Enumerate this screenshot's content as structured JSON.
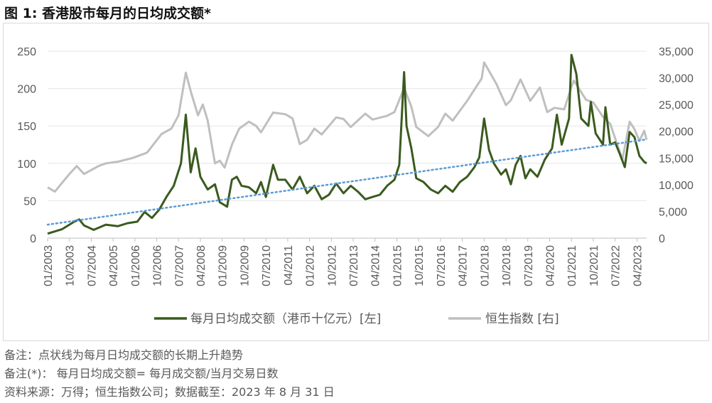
{
  "title": "图 1:  香港股市每月的日均成交额*",
  "notes": [
    "备注：点状线为每月日均成交额的长期上升趋势",
    "备注(*)：  每月日均成交额=  每月成交额/当月交易日数",
    "资料来源：万得；恒生指数公司；数据截至：2023 年 8 月 31 日"
  ],
  "chart_data": {
    "type": "line",
    "x_start": "01/2003",
    "x_end": "08/2023",
    "x_tick_labels": [
      "01/2003",
      "10/2003",
      "07/2004",
      "04/2005",
      "01/2006",
      "10/2006",
      "07/2007",
      "04/2008",
      "01/2009",
      "10/2009",
      "07/2010",
      "04/2011",
      "01/2012",
      "10/2012",
      "07/2013",
      "04/2014",
      "01/2015",
      "10/2015",
      "07/2016",
      "04/2017",
      "01/2018",
      "10/2018",
      "07/2019",
      "04/2020",
      "01/2021",
      "10/2021",
      "07/2022",
      "04/2023"
    ],
    "y_left": {
      "ylim": [
        0,
        250
      ],
      "ticks": [
        "0",
        "50",
        "100",
        "150",
        "200",
        "250"
      ]
    },
    "y_right": {
      "ylim": [
        0,
        35000
      ],
      "ticks": [
        "0",
        "5,000",
        "10,000",
        "15,000",
        "20,000",
        "25,000",
        "30,000",
        "35,000"
      ]
    },
    "series": [
      {
        "name": "每月日均成交额（港币十亿元）[左]",
        "axis": "left",
        "color": "#3a5a1e",
        "points": [
          [
            "01/2003",
            6
          ],
          [
            "07/2003",
            12
          ],
          [
            "12/2003",
            22
          ],
          [
            "02/2004",
            25
          ],
          [
            "04/2004",
            17
          ],
          [
            "08/2004",
            11
          ],
          [
            "01/2005",
            18
          ],
          [
            "06/2005",
            16
          ],
          [
            "10/2005",
            20
          ],
          [
            "02/2006",
            22
          ],
          [
            "05/2006",
            35
          ],
          [
            "08/2006",
            27
          ],
          [
            "11/2006",
            38
          ],
          [
            "02/2007",
            55
          ],
          [
            "05/2007",
            70
          ],
          [
            "08/2007",
            100
          ],
          [
            "10/2007",
            165
          ],
          [
            "12/2007",
            88
          ],
          [
            "02/2008",
            120
          ],
          [
            "04/2008",
            82
          ],
          [
            "07/2008",
            65
          ],
          [
            "10/2008",
            72
          ],
          [
            "12/2008",
            48
          ],
          [
            "03/2009",
            42
          ],
          [
            "05/2009",
            78
          ],
          [
            "07/2009",
            82
          ],
          [
            "09/2009",
            70
          ],
          [
            "12/2009",
            68
          ],
          [
            "03/2010",
            60
          ],
          [
            "05/2010",
            75
          ],
          [
            "07/2010",
            55
          ],
          [
            "10/2010",
            98
          ],
          [
            "12/2010",
            78
          ],
          [
            "03/2011",
            78
          ],
          [
            "06/2011",
            65
          ],
          [
            "09/2011",
            82
          ],
          [
            "12/2011",
            60
          ],
          [
            "03/2012",
            70
          ],
          [
            "06/2012",
            52
          ],
          [
            "09/2012",
            58
          ],
          [
            "12/2012",
            73
          ],
          [
            "03/2013",
            60
          ],
          [
            "06/2013",
            70
          ],
          [
            "09/2013",
            62
          ],
          [
            "12/2013",
            52
          ],
          [
            "03/2014",
            55
          ],
          [
            "06/2014",
            58
          ],
          [
            "09/2014",
            70
          ],
          [
            "12/2014",
            78
          ],
          [
            "02/2015",
            98
          ],
          [
            "04/2015",
            222
          ],
          [
            "05/2015",
            150
          ],
          [
            "07/2015",
            120
          ],
          [
            "09/2015",
            80
          ],
          [
            "12/2015",
            75
          ],
          [
            "03/2016",
            65
          ],
          [
            "06/2016",
            60
          ],
          [
            "09/2016",
            70
          ],
          [
            "12/2016",
            62
          ],
          [
            "03/2017",
            75
          ],
          [
            "06/2017",
            82
          ],
          [
            "09/2017",
            95
          ],
          [
            "11/2017",
            108
          ],
          [
            "01/2018",
            160
          ],
          [
            "03/2018",
            118
          ],
          [
            "05/2018",
            100
          ],
          [
            "08/2018",
            85
          ],
          [
            "10/2018",
            92
          ],
          [
            "12/2018",
            72
          ],
          [
            "02/2019",
            98
          ],
          [
            "04/2019",
            110
          ],
          [
            "06/2019",
            80
          ],
          [
            "08/2019",
            92
          ],
          [
            "11/2019",
            82
          ],
          [
            "02/2020",
            105
          ],
          [
            "05/2020",
            120
          ],
          [
            "07/2020",
            165
          ],
          [
            "09/2020",
            125
          ],
          [
            "12/2020",
            160
          ],
          [
            "01/2021",
            245
          ],
          [
            "03/2021",
            220
          ],
          [
            "05/2021",
            160
          ],
          [
            "08/2021",
            150
          ],
          [
            "09/2021",
            182
          ],
          [
            "11/2021",
            140
          ],
          [
            "02/2022",
            125
          ],
          [
            "03/2022",
            175
          ],
          [
            "05/2022",
            125
          ],
          [
            "07/2022",
            128
          ],
          [
            "09/2022",
            112
          ],
          [
            "11/2022",
            95
          ],
          [
            "01/2023",
            142
          ],
          [
            "03/2023",
            135
          ],
          [
            "05/2023",
            110
          ],
          [
            "07/2023",
            102
          ],
          [
            "08/2023",
            100
          ]
        ]
      },
      {
        "name": "恒生指数 [右]",
        "axis": "right",
        "color": "#bfbfbf",
        "points": [
          [
            "01/2003",
            9500
          ],
          [
            "04/2003",
            8700
          ],
          [
            "10/2003",
            12000
          ],
          [
            "01/2004",
            13500
          ],
          [
            "04/2004",
            12000
          ],
          [
            "10/2004",
            13500
          ],
          [
            "01/2005",
            14000
          ],
          [
            "06/2005",
            14300
          ],
          [
            "12/2005",
            15000
          ],
          [
            "06/2006",
            16000
          ],
          [
            "12/2006",
            19500
          ],
          [
            "04/2007",
            20500
          ],
          [
            "07/2007",
            23000
          ],
          [
            "10/2007",
            31000
          ],
          [
            "12/2007",
            27500
          ],
          [
            "03/2008",
            23000
          ],
          [
            "05/2008",
            25000
          ],
          [
            "07/2008",
            22000
          ],
          [
            "10/2008",
            14000
          ],
          [
            "12/2008",
            14500
          ],
          [
            "02/2009",
            13200
          ],
          [
            "05/2009",
            17500
          ],
          [
            "08/2009",
            20500
          ],
          [
            "12/2009",
            21800
          ],
          [
            "03/2010",
            21000
          ],
          [
            "05/2010",
            19800
          ],
          [
            "10/2010",
            23500
          ],
          [
            "03/2011",
            23200
          ],
          [
            "06/2011",
            22400
          ],
          [
            "09/2011",
            17600
          ],
          [
            "12/2011",
            18400
          ],
          [
            "03/2012",
            20500
          ],
          [
            "06/2012",
            19400
          ],
          [
            "12/2012",
            22600
          ],
          [
            "03/2013",
            22300
          ],
          [
            "06/2013",
            20800
          ],
          [
            "12/2013",
            23300
          ],
          [
            "03/2014",
            22200
          ],
          [
            "09/2014",
            22900
          ],
          [
            "12/2014",
            23600
          ],
          [
            "04/2015",
            28100
          ],
          [
            "07/2015",
            24600
          ],
          [
            "09/2015",
            20800
          ],
          [
            "02/2016",
            19100
          ],
          [
            "06/2016",
            20800
          ],
          [
            "09/2016",
            23300
          ],
          [
            "12/2016",
            22000
          ],
          [
            "06/2017",
            25700
          ],
          [
            "12/2017",
            29900
          ],
          [
            "01/2018",
            32900
          ],
          [
            "06/2018",
            28900
          ],
          [
            "10/2018",
            24900
          ],
          [
            "12/2018",
            25800
          ],
          [
            "04/2019",
            29700
          ],
          [
            "08/2019",
            25700
          ],
          [
            "12/2019",
            28200
          ],
          [
            "03/2020",
            23600
          ],
          [
            "06/2020",
            24400
          ],
          [
            "10/2020",
            24100
          ],
          [
            "01/2021",
            28300
          ],
          [
            "02/2021",
            29500
          ],
          [
            "07/2021",
            25900
          ],
          [
            "10/2021",
            25400
          ],
          [
            "02/2022",
            22700
          ],
          [
            "05/2022",
            21400
          ],
          [
            "10/2022",
            14700
          ],
          [
            "01/2023",
            21800
          ],
          [
            "03/2023",
            20400
          ],
          [
            "05/2023",
            18200
          ],
          [
            "07/2023",
            20100
          ],
          [
            "08/2023",
            18400
          ]
        ]
      }
    ],
    "trendline": {
      "axis": "left",
      "style": "dotted",
      "color": "#5b9bd5",
      "start": [
        "01/2003",
        18
      ],
      "end": [
        "08/2023",
        132
      ]
    },
    "grid": true,
    "legend_position": "bottom"
  }
}
